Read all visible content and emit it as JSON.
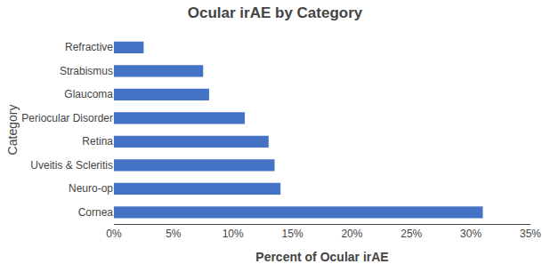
{
  "chart_data": {
    "type": "bar",
    "orientation": "horizontal",
    "title": "Ocular irAE by Category",
    "categories": [
      "Cornea",
      "Neuro-op",
      "Uveitis & Scleritis",
      "Retina",
      "Periocular Disorder",
      "Glaucoma",
      "Strabismus",
      "Refractive"
    ],
    "values": [
      31.0,
      14.0,
      13.5,
      13.0,
      11.0,
      8.0,
      7.5,
      2.5
    ],
    "color": "#4472C4",
    "xlabel": "Percent of Ocular irAE",
    "ylabel": "Category",
    "xlim": [
      0,
      35
    ],
    "xticks": [
      {
        "value": 0,
        "label": "0%"
      },
      {
        "value": 5,
        "label": "5%"
      },
      {
        "value": 10,
        "label": "10%"
      },
      {
        "value": 15,
        "label": "15%"
      },
      {
        "value": 20,
        "label": "20%"
      },
      {
        "value": 25,
        "label": "25%"
      },
      {
        "value": 30,
        "label": "30%"
      },
      {
        "value": 35,
        "label": "35%"
      }
    ],
    "grid": false
  }
}
